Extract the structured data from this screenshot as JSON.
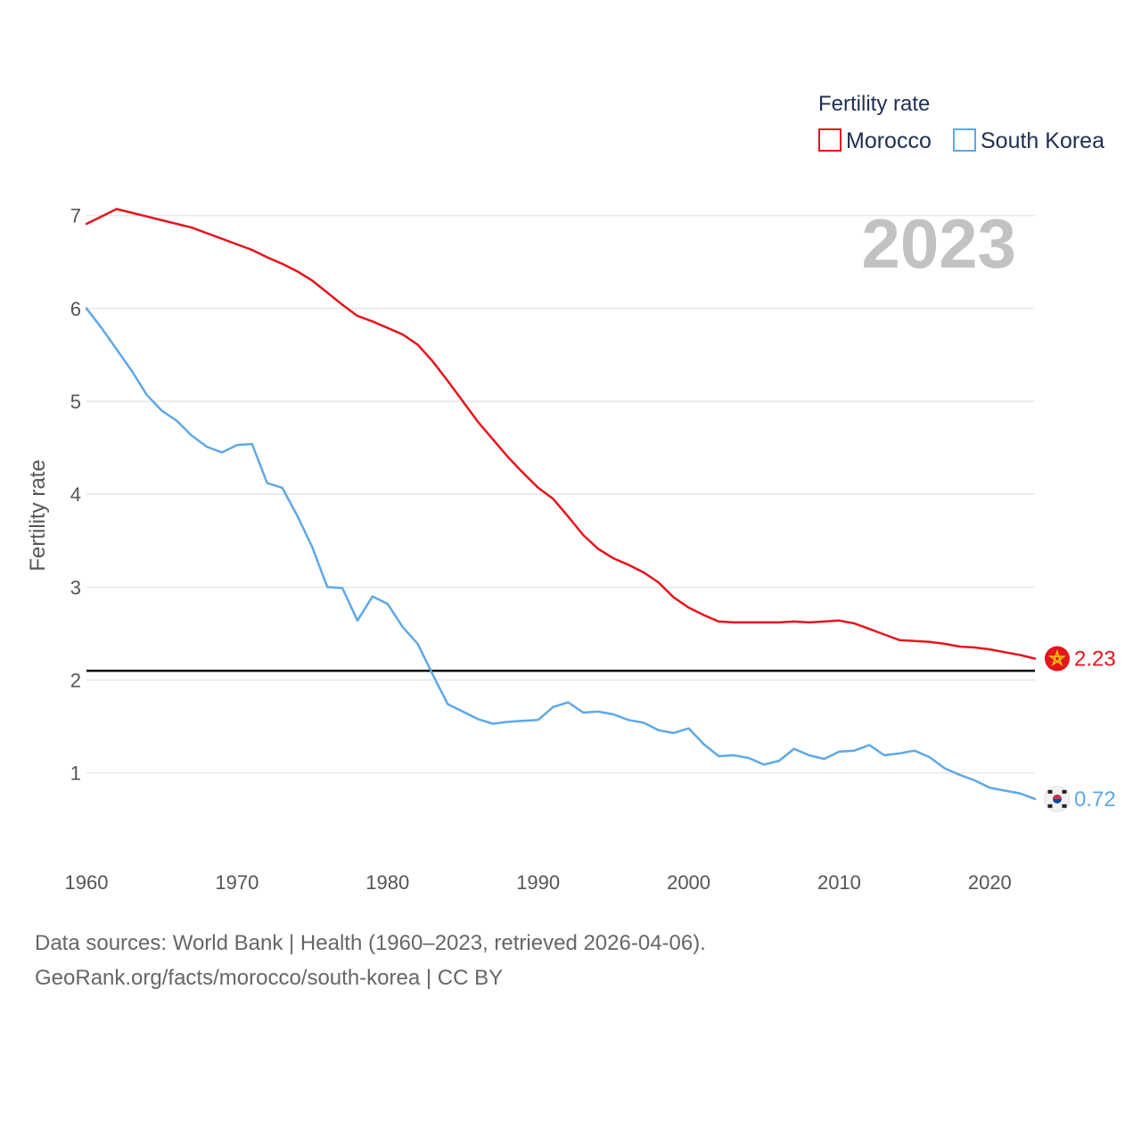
{
  "chart_data": {
    "type": "line",
    "title": "",
    "xlabel": "",
    "ylabel": "Fertility rate",
    "xlim": [
      1960,
      2023
    ],
    "ylim": [
      0.2,
      7.4
    ],
    "x_ticks": [
      1960,
      1970,
      1980,
      1990,
      2000,
      2010,
      2020
    ],
    "y_ticks": [
      1,
      2,
      3,
      4,
      5,
      6,
      7
    ],
    "grid": true,
    "legend": {
      "title": "Fertility rate",
      "position": "top-right"
    },
    "year_watermark": "2023",
    "reference_line": {
      "value": 2.1,
      "color": "#000000"
    },
    "x": [
      1960,
      1961,
      1962,
      1963,
      1964,
      1965,
      1966,
      1967,
      1968,
      1969,
      1970,
      1971,
      1972,
      1973,
      1974,
      1975,
      1976,
      1977,
      1978,
      1979,
      1980,
      1981,
      1982,
      1983,
      1984,
      1985,
      1986,
      1987,
      1988,
      1989,
      1990,
      1991,
      1992,
      1993,
      1994,
      1995,
      1996,
      1997,
      1998,
      1999,
      2000,
      2001,
      2002,
      2003,
      2004,
      2005,
      2006,
      2007,
      2008,
      2009,
      2010,
      2011,
      2012,
      2013,
      2014,
      2015,
      2016,
      2017,
      2018,
      2019,
      2020,
      2021,
      2022,
      2023
    ],
    "series": [
      {
        "name": "Morocco",
        "color": "#e6141b",
        "end_label": "2.23",
        "flag_icon": "morocco-flag-icon",
        "values": [
          6.91,
          6.99,
          7.07,
          7.03,
          6.99,
          6.95,
          6.91,
          6.87,
          6.81,
          6.75,
          6.69,
          6.63,
          6.55,
          6.48,
          6.4,
          6.3,
          6.17,
          6.04,
          5.92,
          5.86,
          5.79,
          5.72,
          5.61,
          5.43,
          5.22,
          5.0,
          4.78,
          4.59,
          4.4,
          4.23,
          4.07,
          3.95,
          3.76,
          3.56,
          3.41,
          3.31,
          3.24,
          3.16,
          3.05,
          2.89,
          2.78,
          2.7,
          2.63,
          2.62,
          2.62,
          2.62,
          2.62,
          2.63,
          2.62,
          2.63,
          2.64,
          2.61,
          2.55,
          2.49,
          2.43,
          2.42,
          2.41,
          2.39,
          2.36,
          2.35,
          2.33,
          2.3,
          2.27,
          2.23
        ]
      },
      {
        "name": "South Korea",
        "color": "#5fa8e6",
        "end_label": "0.72",
        "flag_icon": "south-korea-flag-icon",
        "values": [
          6.0,
          5.79,
          5.56,
          5.33,
          5.07,
          4.9,
          4.79,
          4.63,
          4.51,
          4.45,
          4.53,
          4.54,
          4.12,
          4.07,
          3.77,
          3.43,
          3.0,
          2.99,
          2.64,
          2.9,
          2.82,
          2.57,
          2.39,
          2.06,
          1.74,
          1.66,
          1.58,
          1.53,
          1.55,
          1.56,
          1.57,
          1.71,
          1.76,
          1.65,
          1.66,
          1.63,
          1.57,
          1.54,
          1.46,
          1.43,
          1.48,
          1.31,
          1.18,
          1.19,
          1.16,
          1.09,
          1.13,
          1.26,
          1.19,
          1.15,
          1.23,
          1.24,
          1.3,
          1.19,
          1.21,
          1.24,
          1.17,
          1.05,
          0.98,
          0.92,
          0.84,
          0.81,
          0.78,
          0.72
        ]
      }
    ]
  },
  "footer": {
    "sources": "Data sources: World Bank | Health (1960–2023, retrieved 2026-04-06).",
    "credit": "GeoRank.org/facts/morocco/south-korea | CC BY"
  }
}
